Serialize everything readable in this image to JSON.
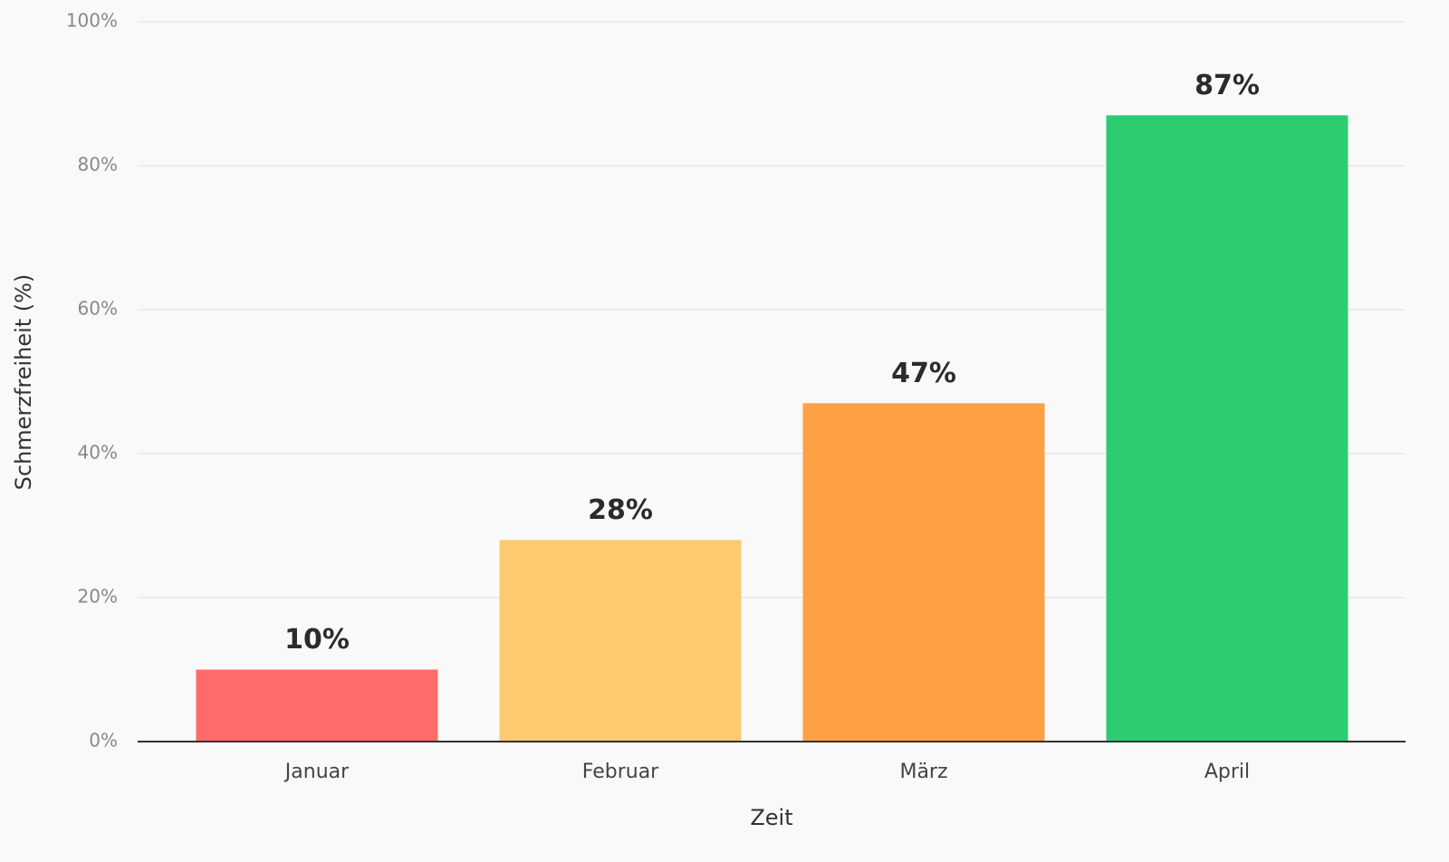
{
  "chart_data": {
    "type": "bar",
    "x_label": "Zeit",
    "y_label": "Schmerzfreiheit (%)",
    "categories": [
      "Januar",
      "Februar",
      "März",
      "April"
    ],
    "values": [
      10,
      28,
      47,
      87
    ],
    "value_labels": [
      "10%",
      "28%",
      "47%",
      "87%"
    ],
    "colors": [
      "#ff6b6b",
      "#feca6e",
      "#ffa045",
      "#2ecc71"
    ],
    "ylim": [
      0,
      100
    ],
    "yticks": [
      {
        "value": 0,
        "label": "0%"
      },
      {
        "value": 20,
        "label": "20%"
      },
      {
        "value": 40,
        "label": "40%"
      },
      {
        "value": 60,
        "label": "60%"
      },
      {
        "value": 80,
        "label": "80%"
      },
      {
        "value": 100,
        "label": "100%"
      }
    ],
    "grid": true
  }
}
